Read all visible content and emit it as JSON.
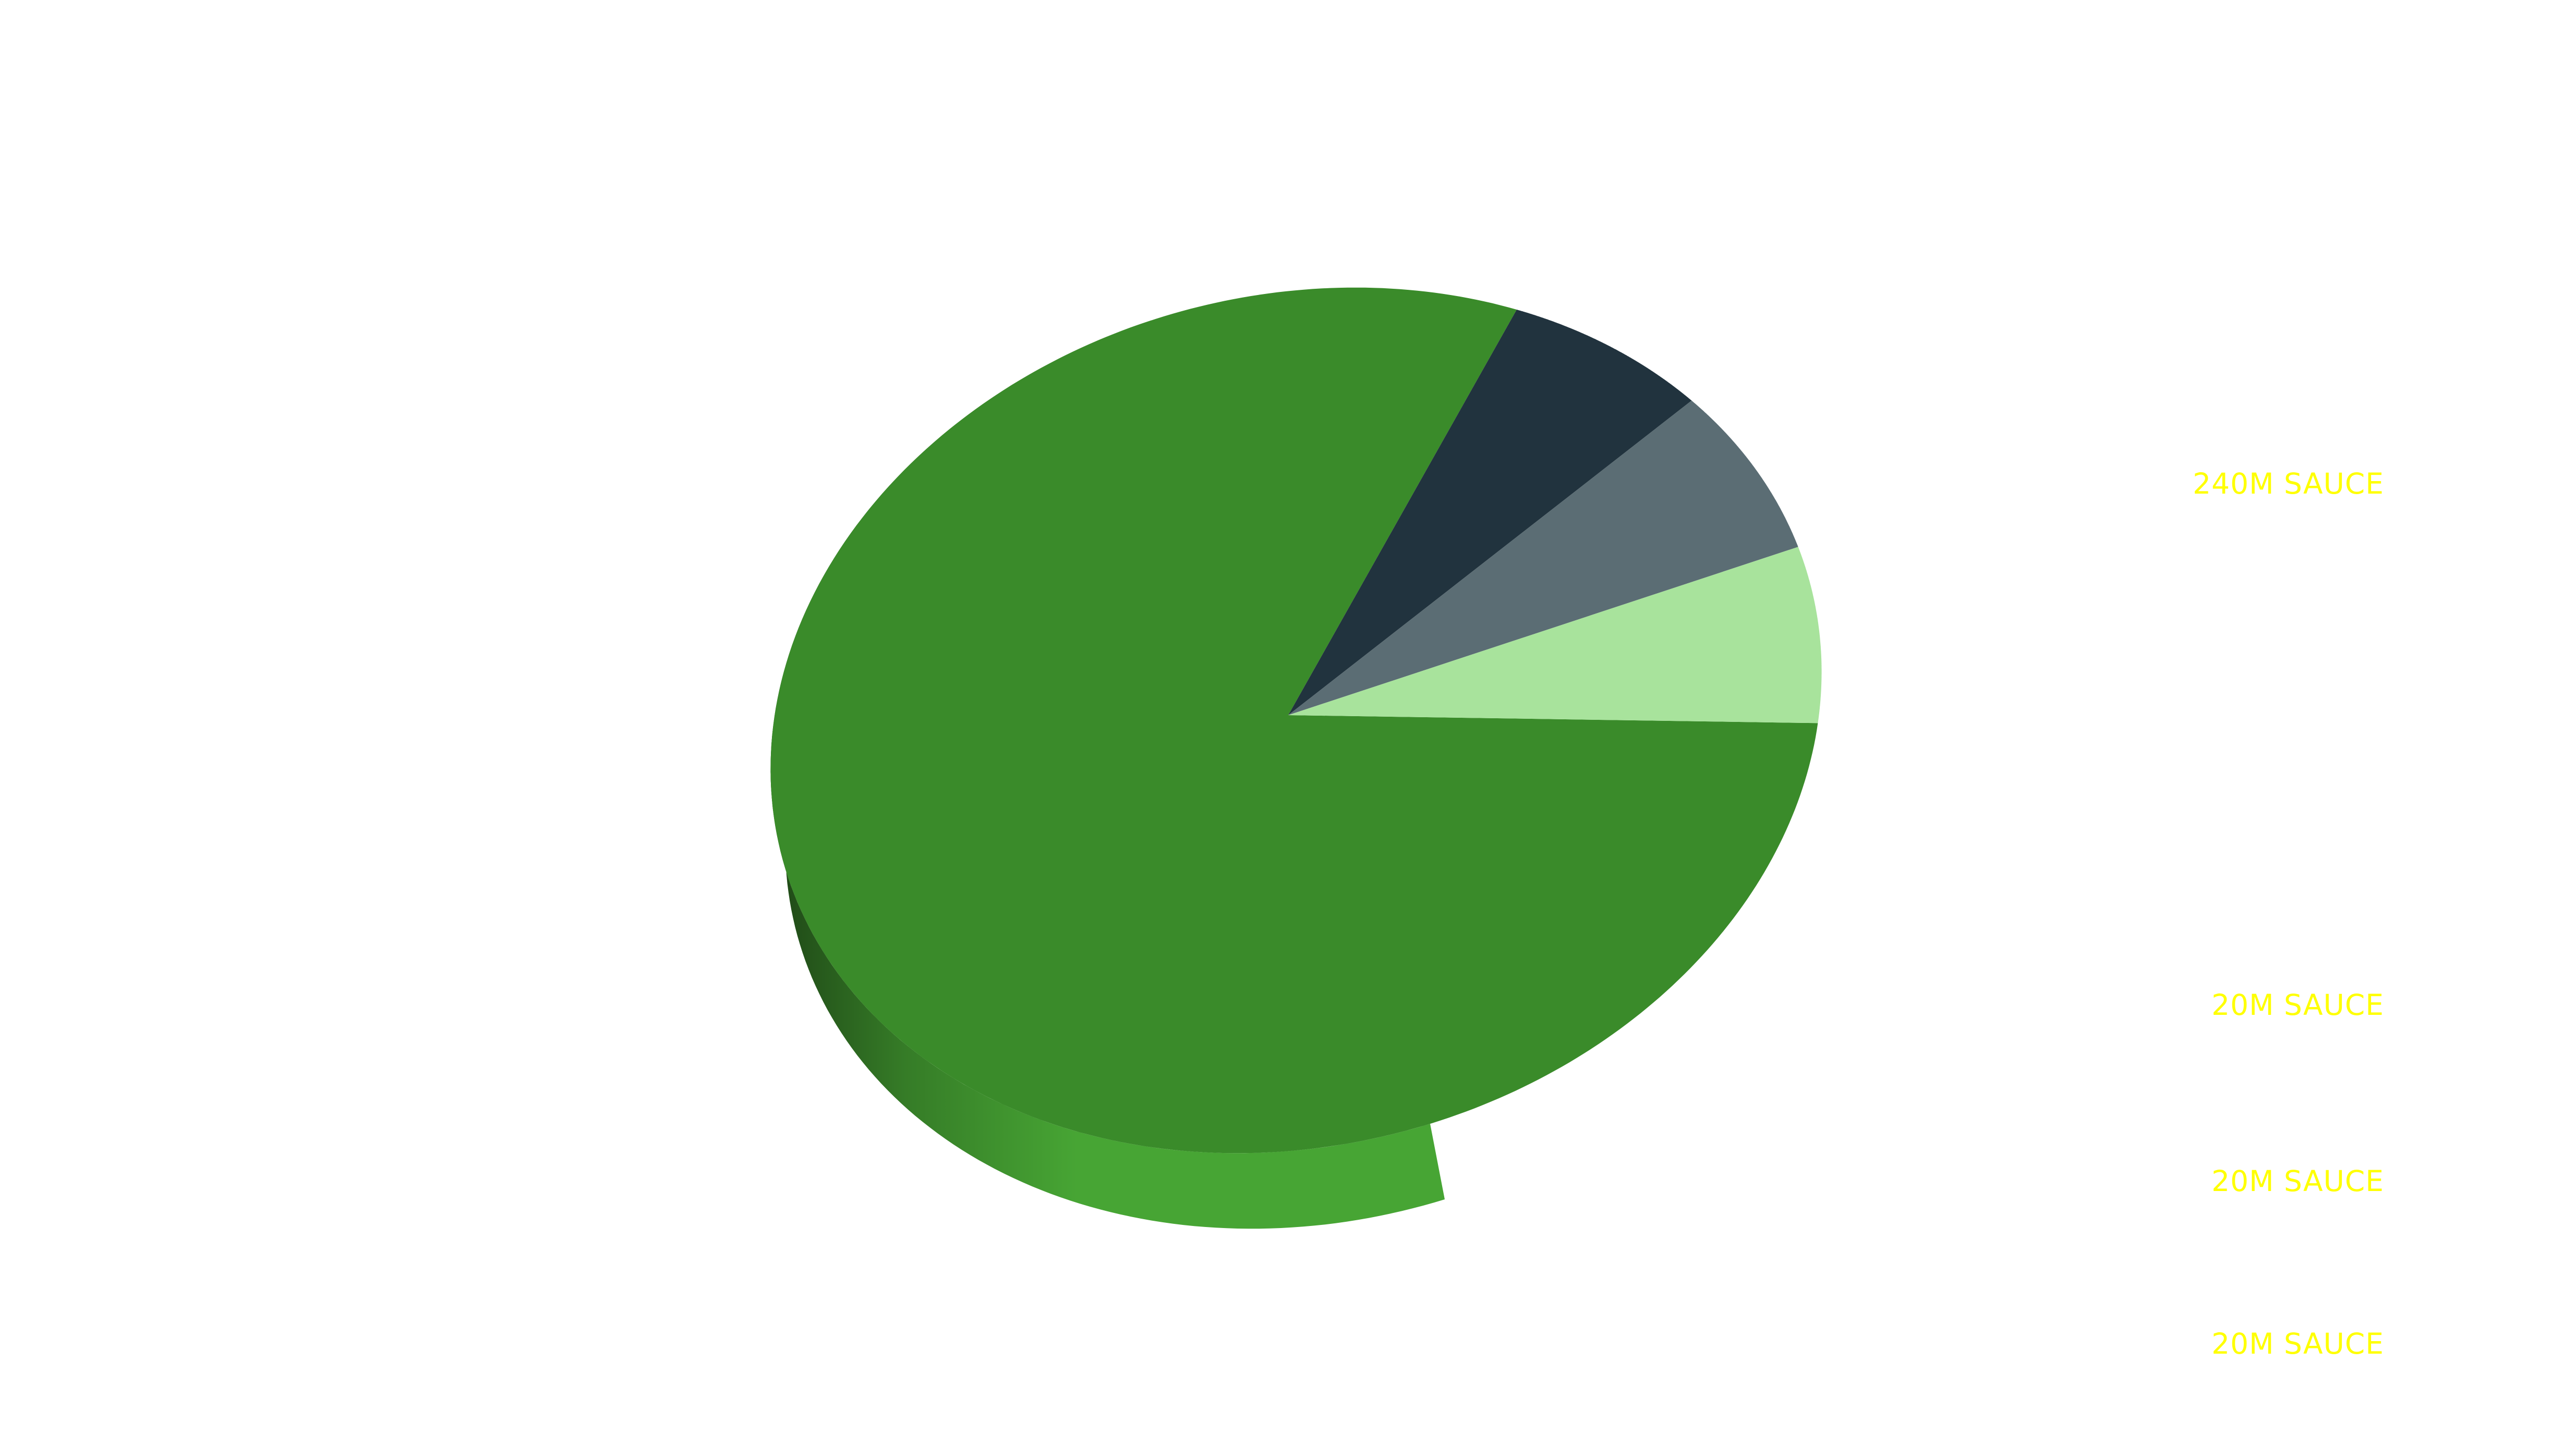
{
  "label_color": "#FFFF00",
  "chart_data": {
    "type": "pie",
    "style": "3d",
    "legend_position": "right",
    "slices": [
      {
        "label": "240M SAUCE",
        "value": 240,
        "color": "#3A8B2A",
        "side_color": "#47A534"
      },
      {
        "label": "20M SAUCE",
        "value": 20,
        "color": "#21333E",
        "side_color": "#384F5C"
      },
      {
        "label": "20M SAUCE",
        "value": 20,
        "color": "#5B6D74",
        "side_color": "#7F959E"
      },
      {
        "label": "20M SAUCE",
        "value": 20,
        "color": "#A8E39C",
        "side_color": "#B3F2A5"
      }
    ]
  }
}
